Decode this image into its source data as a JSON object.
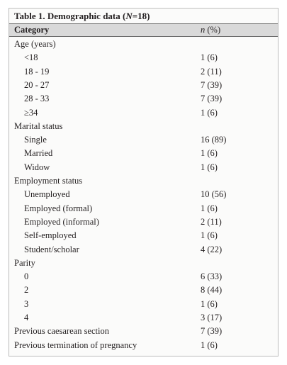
{
  "table": {
    "title": [
      "Table 1. Demographic data (",
      "N",
      "=18)"
    ],
    "header": {
      "category": "Category",
      "value": [
        "n",
        " (%)"
      ]
    },
    "groups": [
      {
        "label": "Age (years)",
        "items": [
          [
            "<18",
            "1 (6)"
          ],
          [
            "18 - 19",
            "2 (11)"
          ],
          [
            "20 - 27",
            "7 (39)"
          ],
          [
            "28 - 33",
            "7 (39)"
          ],
          [
            "≥34",
            "1 (6)"
          ]
        ]
      },
      {
        "label": "Marital status",
        "items": [
          [
            "Single",
            "16 (89)"
          ],
          [
            "Married",
            "1 (6)"
          ],
          [
            "Widow",
            "1 (6)"
          ]
        ]
      },
      {
        "label": "Employment status",
        "items": [
          [
            "Unemployed",
            "10 (56)"
          ],
          [
            "Employed (formal)",
            "1 (6)"
          ],
          [
            "Employed (informal)",
            "2 (11)"
          ],
          [
            "Self-employed",
            "1 (6)"
          ],
          [
            "Student/scholar",
            "4 (22)"
          ]
        ]
      },
      {
        "label": "Parity",
        "items": [
          [
            "0",
            "6 (33)"
          ],
          [
            "2",
            "8 (44)"
          ],
          [
            "3",
            "1 (6)"
          ],
          [
            "4",
            "3 (17)"
          ]
        ]
      },
      {
        "label": "Previous caesarean section",
        "value": "7 (39)"
      },
      {
        "label": "Previous termination of pregnancy",
        "value": "1 (6)"
      }
    ]
  }
}
